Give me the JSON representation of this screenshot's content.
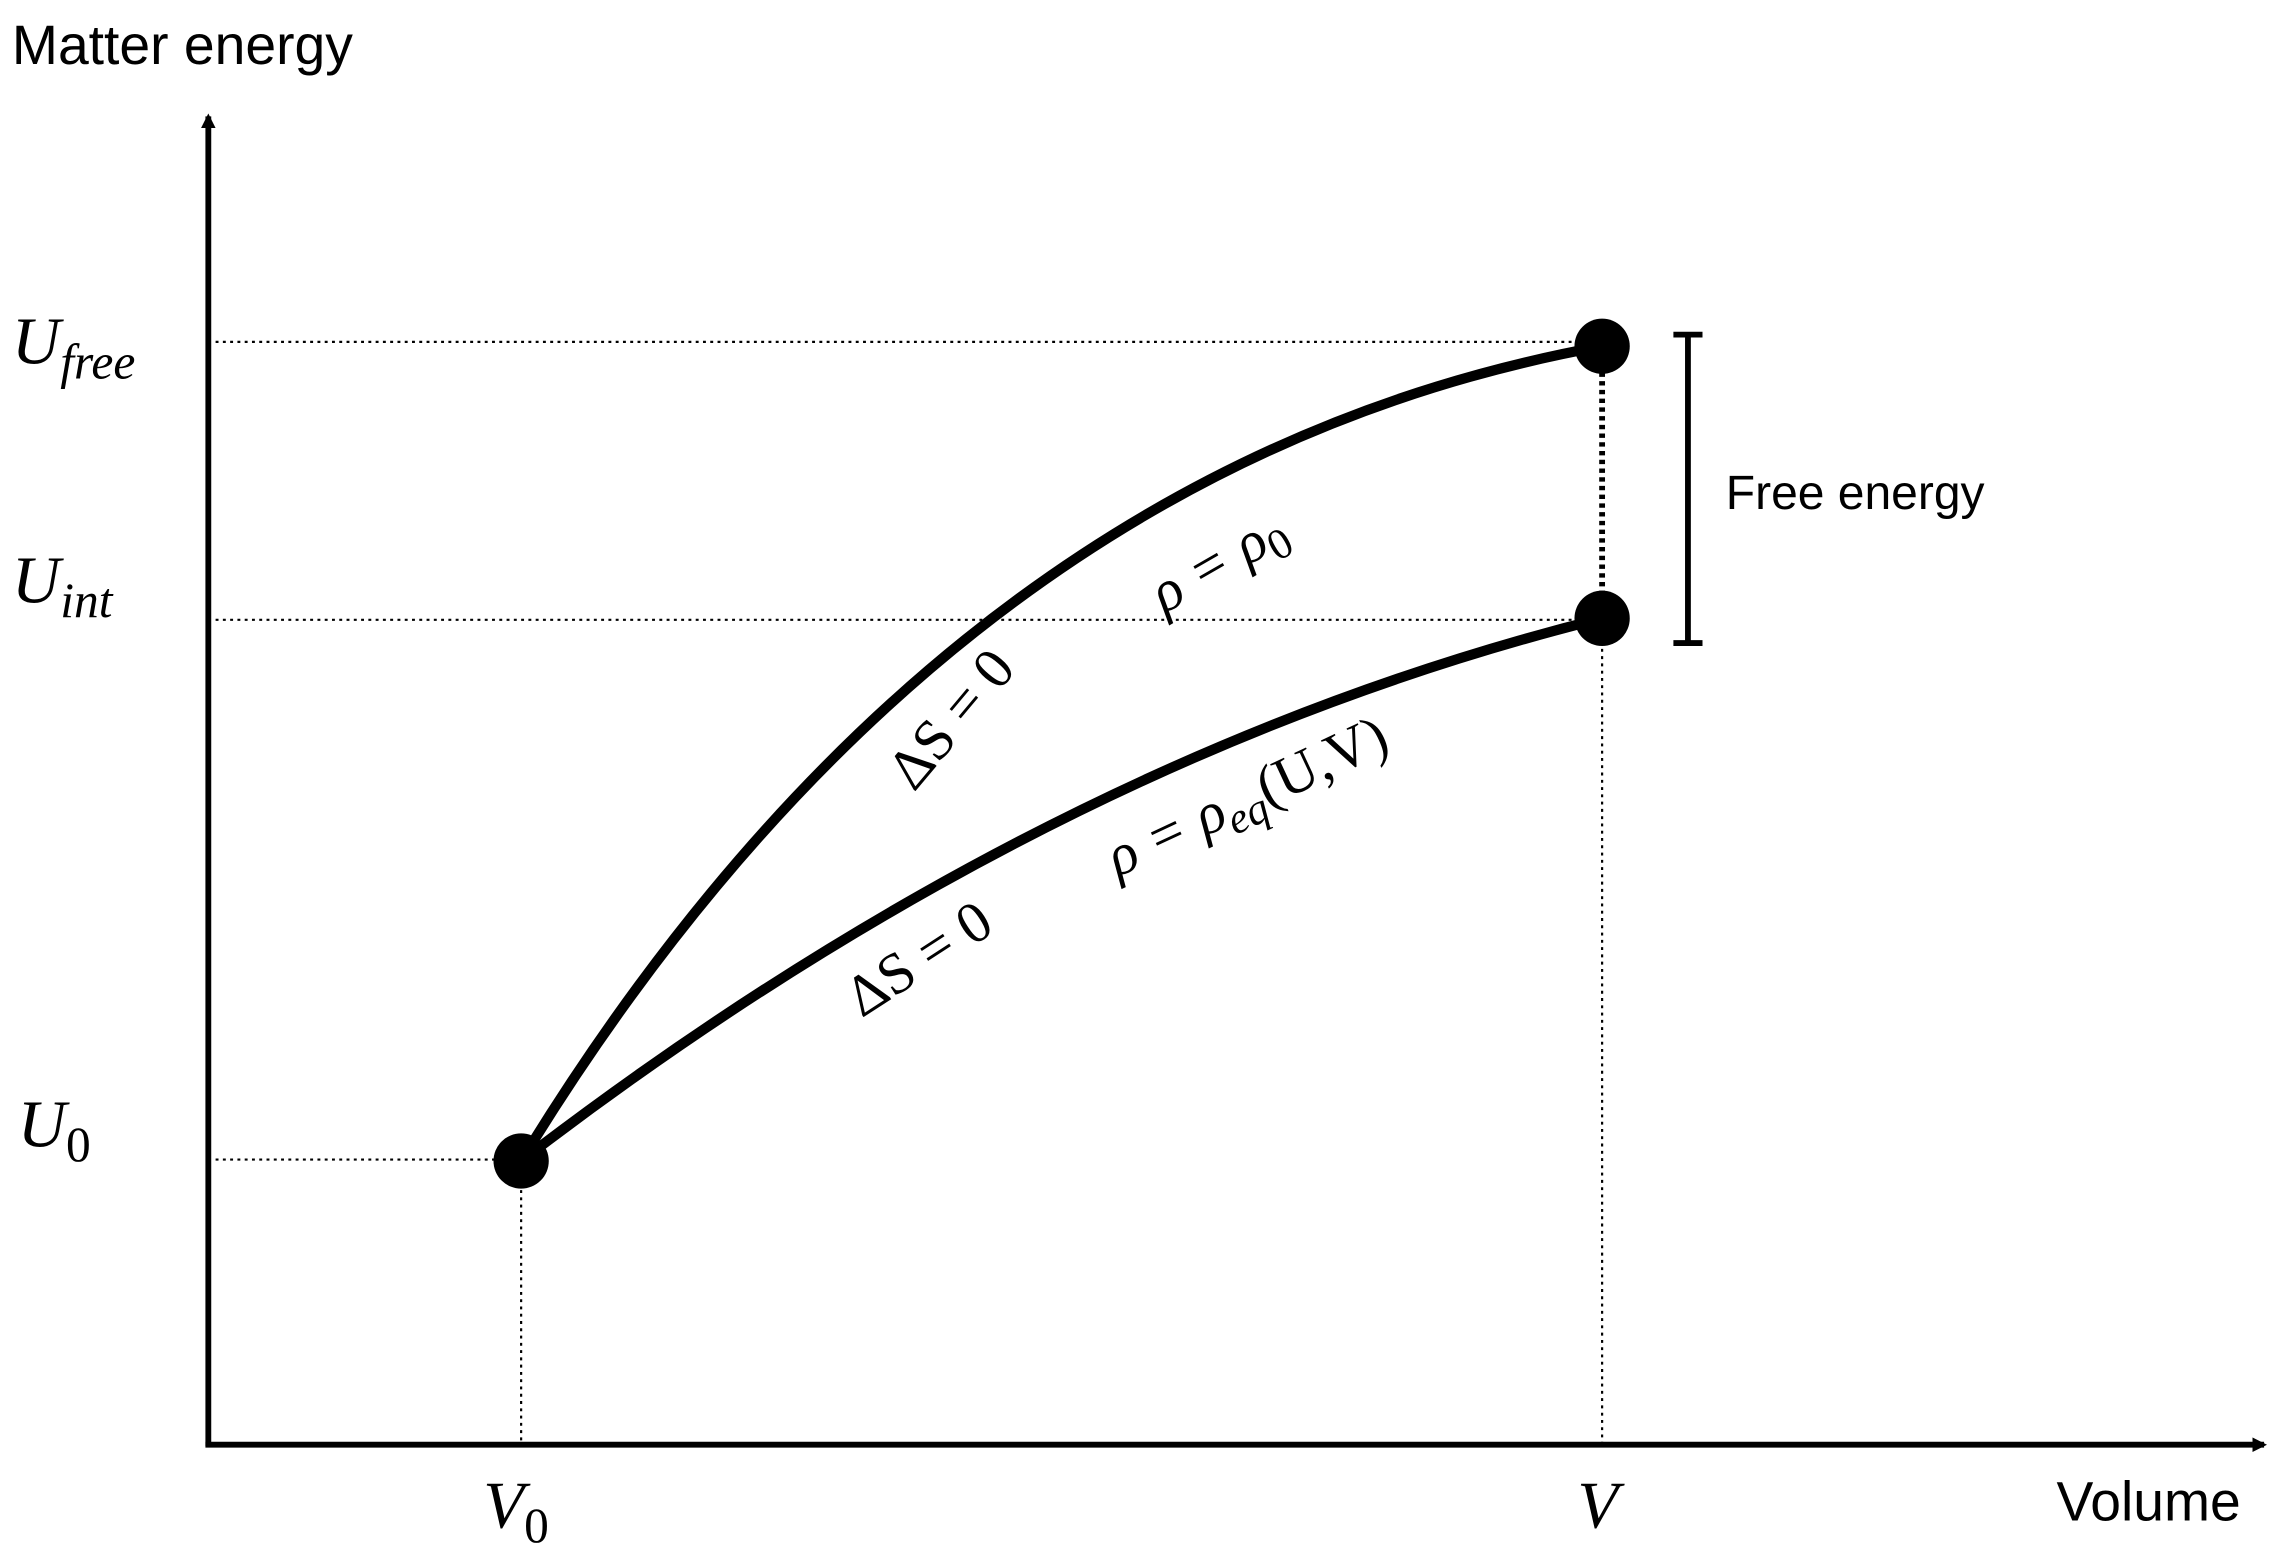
{
  "axes": {
    "y_label": "Matter energy",
    "x_label": "Volume"
  },
  "y_levels": [
    {
      "main": "U",
      "sub": "free"
    },
    {
      "main": "U",
      "sub": "int"
    },
    {
      "main": "U",
      "sub": "0"
    }
  ],
  "x_levels": [
    {
      "main": "V",
      "sub": "0"
    },
    {
      "main": "V"
    }
  ],
  "bracket_label": "Free energy",
  "upper_path": {
    "entropy": "ΔS = 0",
    "density": {
      "main": "ρ = ρ",
      "sub": "0"
    }
  },
  "lower_path": {
    "entropy": "ΔS = 0",
    "density": {
      "main": "ρ = ρ",
      "sub": "eq",
      "tail": "(U,V)"
    }
  }
}
